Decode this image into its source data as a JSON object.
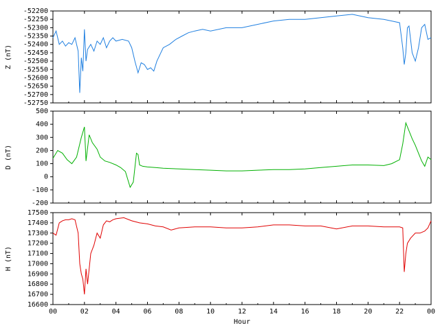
{
  "chart_data": {
    "type": "line",
    "xlabel": "Hour",
    "x_ticks": [
      "00",
      "02",
      "04",
      "06",
      "08",
      "10",
      "12",
      "14",
      "16",
      "18",
      "20",
      "22",
      "00"
    ],
    "xlim": [
      0,
      24
    ],
    "panels": [
      {
        "id": "z",
        "ylabel": "Z (nT)",
        "color": "#1f7fe0",
        "ylim": [
          -52750,
          -52200
        ],
        "y_ticks": [
          -52200,
          -52250,
          -52300,
          -52350,
          -52400,
          -52450,
          -52500,
          -52550,
          -52600,
          -52650,
          -52700,
          -52750
        ],
        "series": [
          {
            "x": [
              0,
              0.2,
              0.4,
              0.6,
              0.8,
              1.0,
              1.2,
              1.4,
              1.6,
              1.7,
              1.8,
              1.9,
              2.0,
              2.1,
              2.2,
              2.4,
              2.6,
              2.8,
              3.0,
              3.2,
              3.4,
              3.6,
              3.8,
              4.0,
              4.4,
              4.8,
              5.0,
              5.2,
              5.4,
              5.6,
              5.8,
              6.0,
              6.2,
              6.4,
              6.6,
              6.8,
              7.0,
              7.4,
              7.8,
              8.2,
              8.6,
              9.0,
              9.5,
              10,
              11,
              12,
              13,
              14,
              15,
              16,
              17,
              18,
              19,
              20,
              21,
              21.5,
              22.0,
              22.2,
              22.3,
              22.4,
              22.5,
              22.6,
              22.8,
              23.0,
              23.2,
              23.4,
              23.6,
              23.8,
              24
            ],
            "y": [
              -52360,
              -52320,
              -52400,
              -52380,
              -52410,
              -52390,
              -52400,
              -52360,
              -52440,
              -52690,
              -52480,
              -52560,
              -52310,
              -52500,
              -52430,
              -52400,
              -52440,
              -52380,
              -52400,
              -52360,
              -52420,
              -52380,
              -52360,
              -52380,
              -52370,
              -52380,
              -52420,
              -52500,
              -52570,
              -52510,
              -52520,
              -52550,
              -52540,
              -52560,
              -52500,
              -52460,
              -52420,
              -52400,
              -52370,
              -52350,
              -52330,
              -52320,
              -52310,
              -52320,
              -52300,
              -52300,
              -52280,
              -52260,
              -52250,
              -52250,
              -52240,
              -52230,
              -52220,
              -52240,
              -52250,
              -52260,
              -52270,
              -52420,
              -52520,
              -52450,
              -52300,
              -52290,
              -52450,
              -52500,
              -52420,
              -52300,
              -52280,
              -52370,
              -52360
            ]
          }
        ]
      },
      {
        "id": "d",
        "ylabel": "D (nT)",
        "color": "#00b000",
        "ylim": [
          -200,
          500
        ],
        "y_ticks": [
          500,
          400,
          300,
          200,
          100,
          0,
          -100,
          -200
        ],
        "series": [
          {
            "x": [
              0,
              0.3,
              0.6,
              0.9,
              1.2,
              1.5,
              1.8,
              2.0,
              2.1,
              2.3,
              2.5,
              2.8,
              3.0,
              3.3,
              3.6,
              4.0,
              4.3,
              4.6,
              4.9,
              5.1,
              5.3,
              5.4,
              5.5,
              5.7,
              6.0,
              6.5,
              7.0,
              8,
              9,
              10,
              11,
              12,
              13,
              14,
              15,
              16,
              17,
              18,
              19,
              20,
              21,
              21.5,
              22.0,
              22.2,
              22.4,
              22.6,
              22.8,
              23.0,
              23.2,
              23.4,
              23.6,
              23.8,
              24
            ],
            "y": [
              140,
              200,
              180,
              130,
              100,
              150,
              300,
              380,
              120,
              320,
              260,
              210,
              150,
              120,
              110,
              90,
              70,
              40,
              -80,
              -40,
              180,
              170,
              90,
              80,
              75,
              70,
              65,
              60,
              55,
              50,
              45,
              45,
              50,
              55,
              55,
              60,
              70,
              80,
              90,
              90,
              85,
              100,
              130,
              250,
              410,
              350,
              290,
              240,
              180,
              120,
              80,
              150,
              130
            ]
          }
        ]
      },
      {
        "id": "h",
        "ylabel": "H (nT)",
        "color": "#e00000",
        "ylim": [
          16600,
          17500
        ],
        "y_ticks": [
          17500,
          17400,
          17300,
          17200,
          17100,
          17000,
          16900,
          16800,
          16700,
          16600
        ],
        "series": [
          {
            "x": [
              0,
              0.2,
              0.4,
              0.6,
              0.8,
              1.0,
              1.2,
              1.4,
              1.6,
              1.7,
              1.8,
              1.9,
              2.0,
              2.1,
              2.2,
              2.4,
              2.6,
              2.8,
              3.0,
              3.2,
              3.4,
              3.6,
              3.8,
              4.0,
              4.5,
              5.0,
              5.5,
              6.0,
              6.5,
              7.0,
              7.5,
              8,
              9,
              10,
              11,
              12,
              13,
              14,
              15,
              16,
              17,
              18,
              19,
              20,
              21,
              22.0,
              22.2,
              22.3,
              22.4,
              22.5,
              22.7,
              23.0,
              23.3,
              23.6,
              23.8,
              24
            ],
            "y": [
              17300,
              17280,
              17400,
              17420,
              17430,
              17430,
              17440,
              17430,
              17300,
              17000,
              16900,
              16850,
              16700,
              16950,
              16800,
              17100,
              17180,
              17300,
              17250,
              17380,
              17420,
              17410,
              17430,
              17440,
              17450,
              17420,
              17400,
              17390,
              17370,
              17360,
              17330,
              17350,
              17360,
              17360,
              17350,
              17350,
              17360,
              17380,
              17380,
              17370,
              17370,
              17340,
              17370,
              17370,
              17360,
              17360,
              17350,
              16920,
              17100,
              17200,
              17250,
              17300,
              17300,
              17320,
              17350,
              17420
            ]
          }
        ]
      }
    ]
  }
}
